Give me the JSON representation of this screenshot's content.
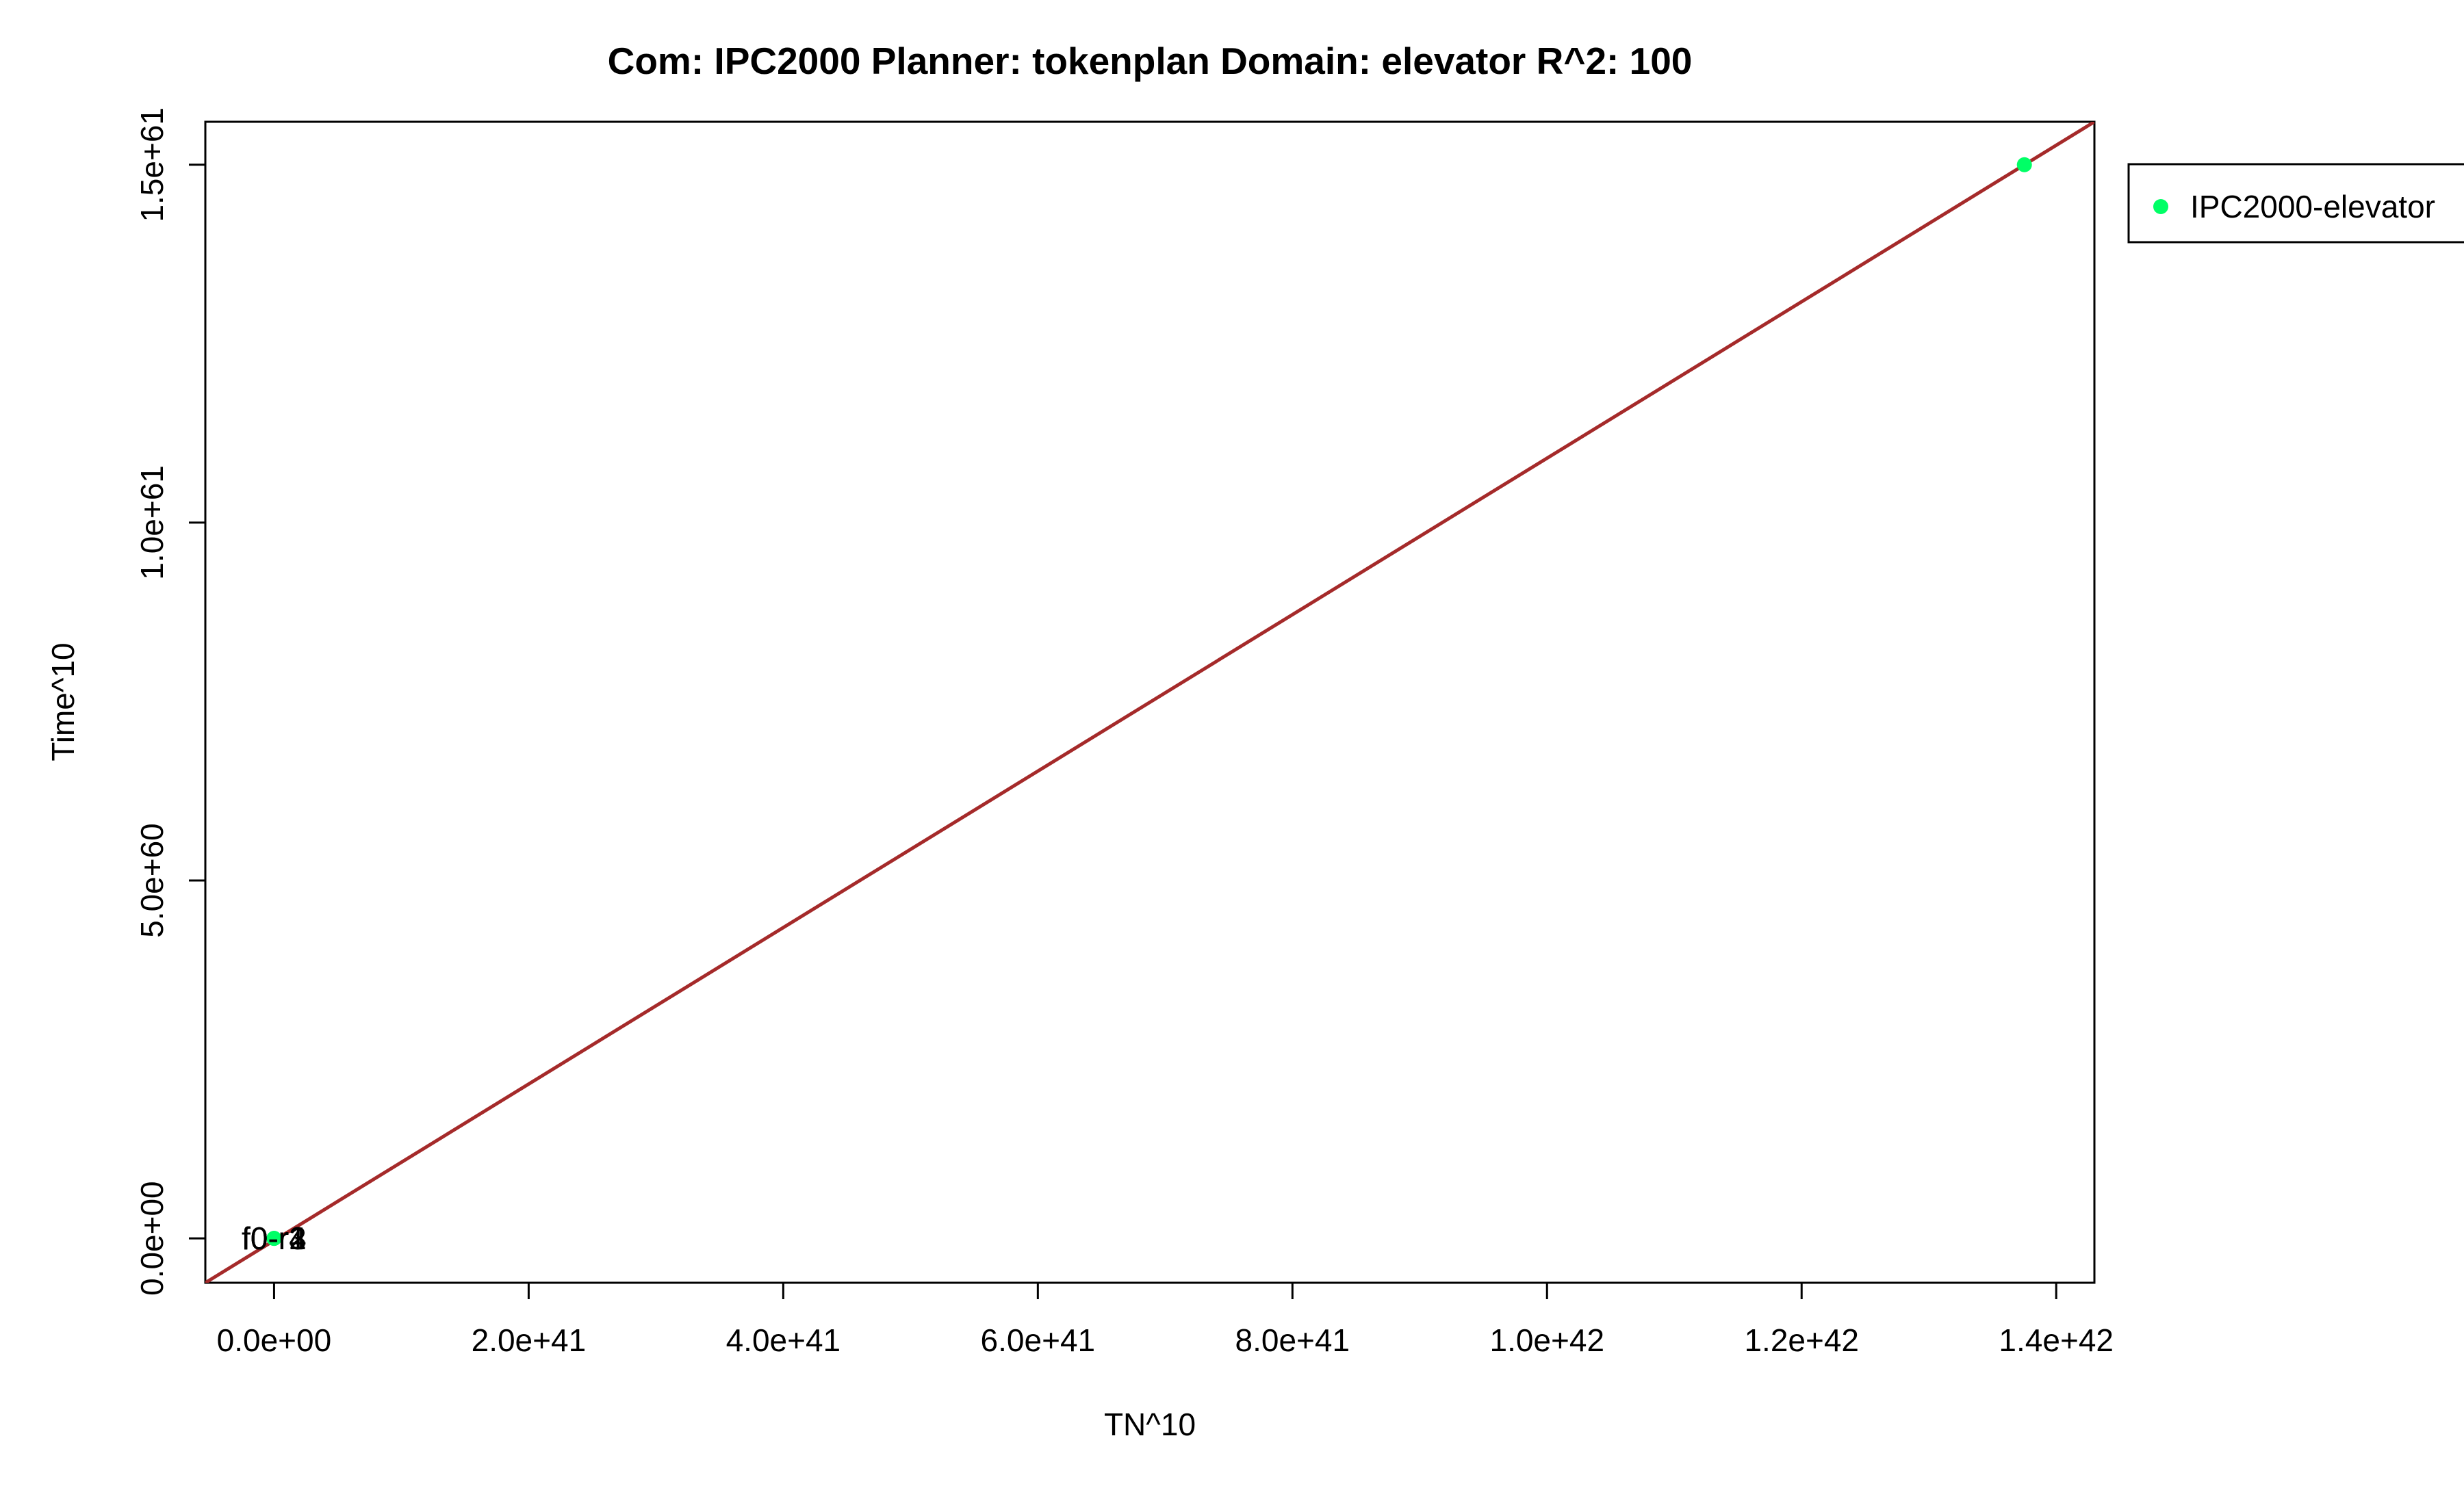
{
  "chart_data": {
    "type": "scatter",
    "title": "Com: IPC2000 Planner: tokenplan Domain: elevator R^2: 100",
    "xlabel": "TN^10",
    "ylabel": "Time^10",
    "xlim": [
      -5.4e+40,
      1.43e+42
    ],
    "ylim": [
      -6.2e+59,
      1.56e+61
    ],
    "x_ticks": [
      {
        "value": 0,
        "label": "0.0e+00"
      },
      {
        "value": 2e+41,
        "label": "2.0e+41"
      },
      {
        "value": 4e+41,
        "label": "4.0e+41"
      },
      {
        "value": 6e+41,
        "label": "6.0e+41"
      },
      {
        "value": 8e+41,
        "label": "8.0e+41"
      },
      {
        "value": 1e+42,
        "label": "1.0e+42"
      },
      {
        "value": 1.2e+42,
        "label": "1.2e+42"
      },
      {
        "value": 1.4e+42,
        "label": "1.4e+42"
      }
    ],
    "y_ticks": [
      {
        "value": 0,
        "label": "0.0e+00"
      },
      {
        "value": 5e+60,
        "label": "5.0e+60"
      },
      {
        "value": 1e+61,
        "label": "1.0e+61"
      },
      {
        "value": 1.5e+61,
        "label": "1.5e+61"
      }
    ],
    "series": [
      {
        "name": "IPC2000-elevator",
        "color": "#00ff66",
        "points": [
          {
            "x": 0,
            "y": 0,
            "label": "f0-r1"
          },
          {
            "x": 0,
            "y": 0,
            "label": "f0-r2"
          },
          {
            "x": 0,
            "y": 0,
            "label": "f0-r3"
          },
          {
            "x": 0,
            "y": 0,
            "label": "f0-r4"
          },
          {
            "x": 1.375e+42,
            "y": 1.5e+61,
            "label": ""
          }
        ]
      }
    ],
    "fit_line": {
      "color": "#a52a2a",
      "from": {
        "x": -5.4e+40,
        "y": -6.2e+59
      },
      "to": {
        "x": 1.43e+42,
        "y": 1.56e+61
      }
    },
    "legend": {
      "position": "right",
      "entries": [
        {
          "label": "IPC2000-elevator",
          "color": "#00ff66"
        }
      ]
    },
    "grid": false
  }
}
